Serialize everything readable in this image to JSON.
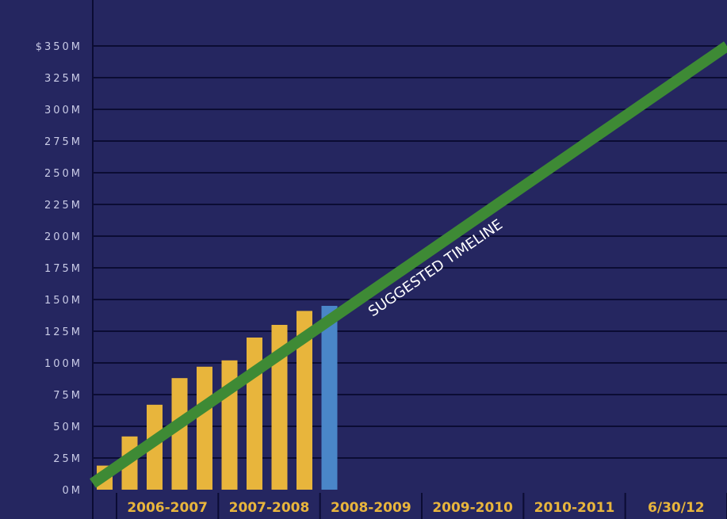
{
  "colors": {
    "background": "#252660",
    "gridline": "#0b0c33",
    "bar_fundraised": "#e8b53c",
    "bar_current": "#4a86c8",
    "trendline": "#3e8a35",
    "tick_text": "#c9cbe6",
    "x_label_text": "#e8b53c",
    "annotation_text": "#ffffff"
  },
  "chart_data": {
    "type": "bar",
    "title": "",
    "xlabel": "",
    "ylabel": "",
    "y_tick_labels": [
      "$350M",
      "325M",
      "300M",
      "275M",
      "250M",
      "225M",
      "200M",
      "175M",
      "150M",
      "125M",
      "100M",
      "75M",
      "50M",
      "25M",
      "0M"
    ],
    "y_ticks": [
      350,
      325,
      300,
      275,
      250,
      225,
      200,
      175,
      150,
      125,
      100,
      75,
      50,
      25,
      0
    ],
    "ylim": [
      0,
      350
    ],
    "x_labels": [
      "2006-2007",
      "2007-2008",
      "2008-2009",
      "2009-2010",
      "2010-2011",
      "6/30/12"
    ],
    "grid": true,
    "bars": [
      {
        "value": 19,
        "status": "fundraised"
      },
      {
        "value": 42,
        "status": "fundraised"
      },
      {
        "value": 67,
        "status": "fundraised"
      },
      {
        "value": 88,
        "status": "fundraised"
      },
      {
        "value": 97,
        "status": "fundraised"
      },
      {
        "value": 102,
        "status": "fundraised"
      },
      {
        "value": 120,
        "status": "fundraised"
      },
      {
        "value": 130,
        "status": "fundraised"
      },
      {
        "value": 141,
        "status": "fundraised"
      },
      {
        "value": 145,
        "status": "current"
      }
    ],
    "trendline": {
      "label": "SUGGESTED TIMELINE",
      "start_value": 5,
      "end_value": 350
    }
  }
}
